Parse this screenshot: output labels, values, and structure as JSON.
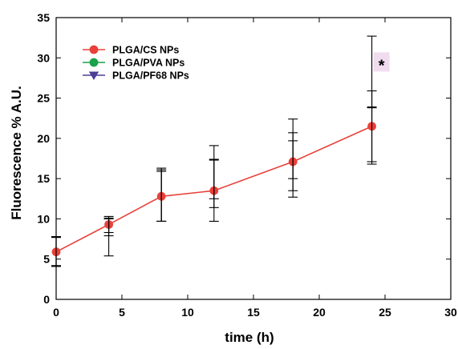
{
  "chart_data": {
    "type": "line",
    "xlabel": "time (h)",
    "ylabel": "Fluorescence % A.U.",
    "xlim": [
      0,
      30
    ],
    "ylim": [
      0,
      35
    ],
    "xticks": [
      0,
      5,
      10,
      15,
      20,
      25,
      30
    ],
    "yticks": [
      0,
      5,
      10,
      15,
      20,
      25,
      30,
      35
    ],
    "x": [
      0,
      4,
      8,
      12,
      18,
      24
    ],
    "grid": false,
    "legend_position": "top-left",
    "series": [
      {
        "name": "PLGA/CS NPs",
        "color": "#e8413a",
        "marker": "circle",
        "values": [
          5.9,
          9.3,
          12.8,
          13.5,
          17.1,
          21.5
        ],
        "error_low": [
          1.8,
          1.0,
          3.1,
          3.8,
          3.6,
          4.4
        ],
        "error_high": [
          1.8,
          1.0,
          3.1,
          3.8,
          3.6,
          4.4
        ]
      },
      {
        "name": "PLGA/PVA NPs",
        "color": "#1aa14a",
        "marker": "circle",
        "values": [
          5.9,
          7.7,
          12.9,
          14.4,
          16.2,
          20.3
        ],
        "error_low": [
          1.8,
          2.3,
          3.2,
          3.0,
          3.5,
          3.5
        ],
        "error_high": [
          1.8,
          2.3,
          3.2,
          3.0,
          3.5,
          3.5
        ]
      },
      {
        "name": "PLGA/PF68 NPs",
        "color": "#4b3f95",
        "marker": "triangle-down",
        "values": [
          6.0,
          9.0,
          13.0,
          15.8,
          18.7,
          28.3
        ],
        "error_low": [
          1.8,
          1.1,
          3.3,
          3.3,
          3.7,
          4.4
        ],
        "error_high": [
          1.8,
          1.1,
          3.3,
          3.3,
          3.7,
          4.4
        ]
      }
    ],
    "annotations": [
      {
        "text": "*",
        "x": 24,
        "y": 29.3
      }
    ]
  }
}
